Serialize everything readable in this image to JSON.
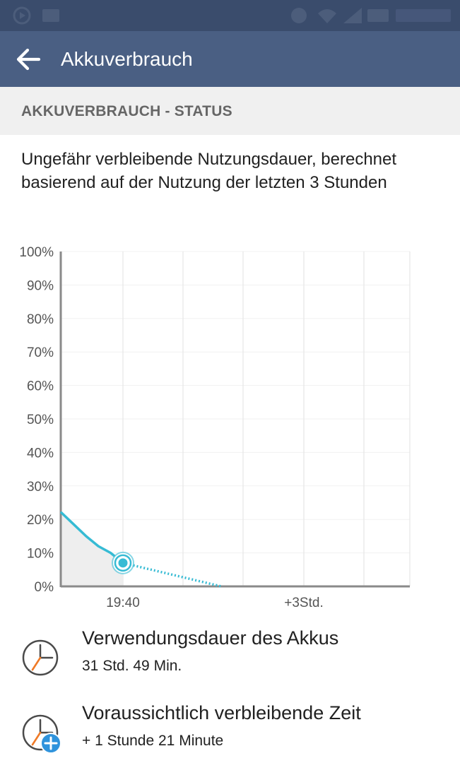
{
  "app_bar": {
    "title": "Akkuverbrauch"
  },
  "section": {
    "header": "AKKUVERBRAUCH - STATUS"
  },
  "description": "Ungefähr verbleibende Nutzungsdauer, berechnet basierend auf der Nutzung der letzten 3 Stunden",
  "chart_data": {
    "type": "line",
    "y_tick_labels": [
      "100%",
      "90%",
      "80%",
      "70%",
      "60%",
      "50%",
      "40%",
      "30%",
      "20%",
      "10%",
      "0%"
    ],
    "ylim": [
      0,
      100
    ],
    "x_tick_labels": [
      "19:40",
      "+3Std."
    ],
    "series": [
      {
        "values": [
          [
            -1,
            22
          ],
          [
            -0.8,
            18.5
          ],
          [
            -0.6,
            15
          ],
          [
            -0.4,
            12
          ],
          [
            -0.2,
            10
          ],
          [
            0,
            7
          ]
        ]
      },
      {
        "values": [
          [
            0,
            7
          ],
          [
            1.6,
            0
          ]
        ]
      }
    ],
    "current_point": {
      "x": 0,
      "y": 7
    },
    "colors": {
      "line": "#36bbd4",
      "fill": "#eeeeee",
      "grid": "#e6e6e6",
      "axis": "#8a8a8a"
    }
  },
  "items": [
    {
      "title": "Verwendungsdauer des Akkus",
      "subtitle": "31 Std. 49 Min.",
      "icon": "clock-icon"
    },
    {
      "title": "Voraussichtlich verbleibende Zeit",
      "subtitle": "+ 1 Stunde 21 Minute",
      "icon": "clock-plus-icon"
    }
  ]
}
